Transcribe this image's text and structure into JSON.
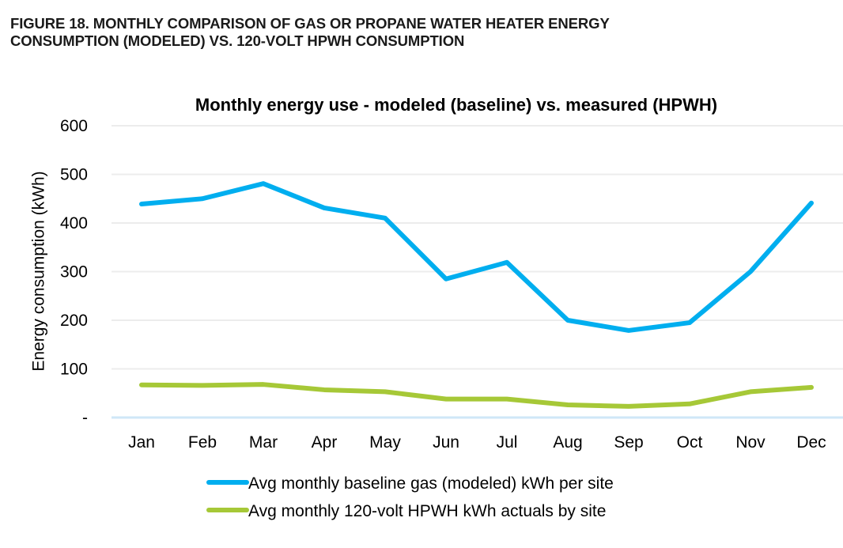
{
  "figure": {
    "caption_line1": "FIGURE 18. MONTHLY COMPARISON OF GAS OR PROPANE WATER HEATER ENERGY",
    "caption_line2": "CONSUMPTION (MODELED) VS. 120-VOLT HPWH CONSUMPTION"
  },
  "chart_data": {
    "type": "line",
    "title": "Monthly energy use - modeled (baseline) vs. measured (HPWH)",
    "xlabel": "",
    "ylabel": "Energy consumption (kWh)",
    "categories": [
      "Jan",
      "Feb",
      "Mar",
      "Apr",
      "May",
      "Jun",
      "Jul",
      "Aug",
      "Sep",
      "Oct",
      "Nov",
      "Dec"
    ],
    "ylim": [
      0,
      600
    ],
    "yticks": [
      0,
      100,
      200,
      300,
      400,
      500,
      600
    ],
    "ytick_labels": [
      "-",
      "100",
      "200",
      "300",
      "400",
      "500",
      "600"
    ],
    "grid": true,
    "legend_position": "bottom",
    "series": [
      {
        "name": "Avg monthly baseline gas (modeled) kWh per site",
        "color": "#00aeef",
        "values": [
          439,
          450,
          481,
          431,
          410,
          285,
          319,
          200,
          179,
          195,
          300,
          441
        ]
      },
      {
        "name": "Avg monthly 120-volt HPWH kWh actuals by site",
        "color": "#a6c837",
        "values": [
          67,
          66,
          68,
          57,
          53,
          38,
          38,
          26,
          23,
          28,
          53,
          62
        ]
      }
    ]
  }
}
